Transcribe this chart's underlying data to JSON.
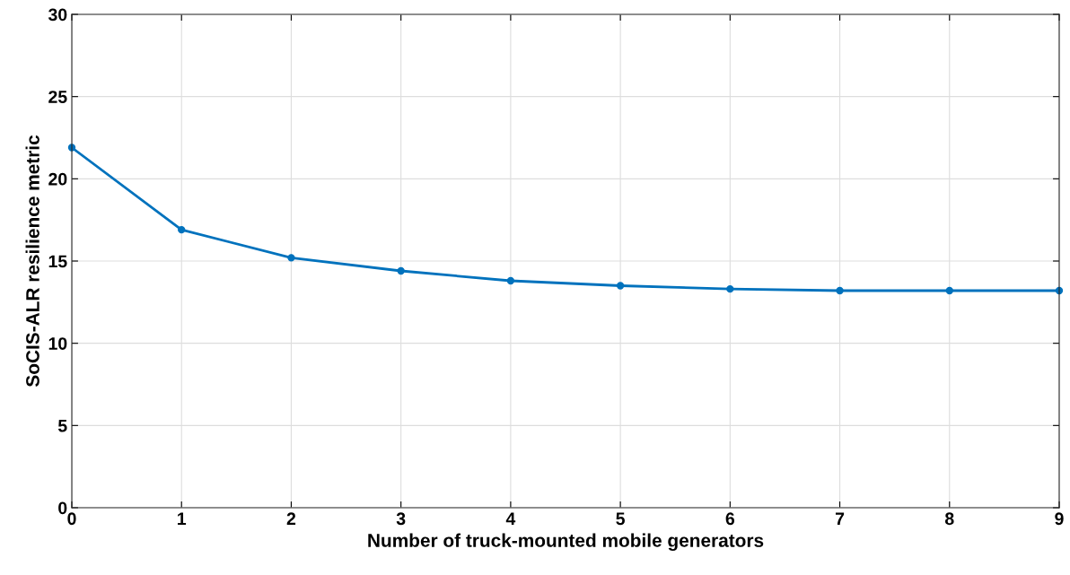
{
  "chart_data": {
    "type": "line",
    "xlabel": "Number of truck-mounted mobile generators",
    "ylabel": "SoCIS-ALR resilience metric",
    "x": [
      0,
      1,
      2,
      3,
      4,
      5,
      6,
      7,
      8,
      9
    ],
    "series": [
      {
        "color": "#0072bd",
        "values": [
          21.9,
          16.9,
          15.2,
          14.4,
          13.8,
          13.5,
          13.3,
          13.2,
          13.2,
          13.2
        ]
      }
    ],
    "xlim": [
      0,
      9
    ],
    "xticks": [
      0,
      1,
      2,
      3,
      4,
      5,
      6,
      7,
      8,
      9
    ],
    "ylim": [
      0,
      30
    ],
    "yticks": [
      0,
      5,
      10,
      15,
      20,
      25,
      30
    ],
    "grid": true,
    "marker": "circle",
    "line_style": "solid"
  }
}
